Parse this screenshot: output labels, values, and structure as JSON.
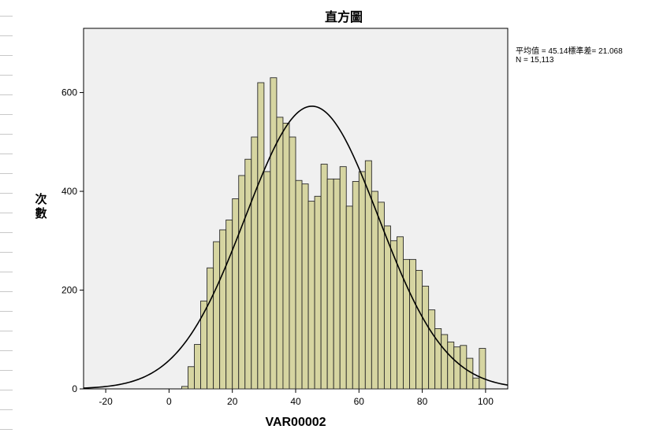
{
  "chart_data": {
    "type": "bar",
    "title": "直方圖",
    "xlabel": "VAR00002",
    "ylabel": "次數",
    "xlim": [
      -27,
      107
    ],
    "ylim": [
      0,
      730
    ],
    "x_ticks": [
      -20,
      0,
      20,
      40,
      60,
      80,
      100
    ],
    "y_ticks": [
      0,
      200,
      400,
      600
    ],
    "bin_width": 2,
    "bins": [
      {
        "x": 4,
        "value": 5
      },
      {
        "x": 6,
        "value": 45
      },
      {
        "x": 8,
        "value": 90
      },
      {
        "x": 10,
        "value": 178
      },
      {
        "x": 12,
        "value": 245
      },
      {
        "x": 14,
        "value": 298
      },
      {
        "x": 16,
        "value": 322
      },
      {
        "x": 18,
        "value": 342
      },
      {
        "x": 20,
        "value": 385
      },
      {
        "x": 22,
        "value": 432
      },
      {
        "x": 24,
        "value": 465
      },
      {
        "x": 26,
        "value": 510
      },
      {
        "x": 28,
        "value": 620
      },
      {
        "x": 30,
        "value": 440
      },
      {
        "x": 32,
        "value": 630
      },
      {
        "x": 34,
        "value": 550
      },
      {
        "x": 36,
        "value": 538
      },
      {
        "x": 38,
        "value": 510
      },
      {
        "x": 40,
        "value": 422
      },
      {
        "x": 42,
        "value": 415
      },
      {
        "x": 44,
        "value": 380
      },
      {
        "x": 46,
        "value": 390
      },
      {
        "x": 48,
        "value": 455
      },
      {
        "x": 50,
        "value": 425
      },
      {
        "x": 52,
        "value": 425
      },
      {
        "x": 54,
        "value": 450
      },
      {
        "x": 56,
        "value": 370
      },
      {
        "x": 58,
        "value": 420
      },
      {
        "x": 60,
        "value": 440
      },
      {
        "x": 62,
        "value": 462
      },
      {
        "x": 64,
        "value": 400
      },
      {
        "x": 66,
        "value": 378
      },
      {
        "x": 68,
        "value": 330
      },
      {
        "x": 70,
        "value": 300
      },
      {
        "x": 72,
        "value": 308
      },
      {
        "x": 74,
        "value": 262
      },
      {
        "x": 76,
        "value": 262
      },
      {
        "x": 78,
        "value": 240
      },
      {
        "x": 80,
        "value": 208
      },
      {
        "x": 82,
        "value": 160
      },
      {
        "x": 84,
        "value": 122
      },
      {
        "x": 86,
        "value": 110
      },
      {
        "x": 88,
        "value": 95
      },
      {
        "x": 90,
        "value": 85
      },
      {
        "x": 92,
        "value": 88
      },
      {
        "x": 94,
        "value": 62
      },
      {
        "x": 96,
        "value": 22
      },
      {
        "x": 98,
        "value": 82
      }
    ],
    "normal_curve": {
      "mean": 45.14,
      "sd": 21.068,
      "n": 15113
    },
    "annotation": [
      "平均值 = 45.14標準差= 21.068",
      "N = 15,113"
    ],
    "colors": {
      "plot_bg": "#f0f0f0",
      "bar_fill": "#d6d5a1",
      "bar_stroke": "#2a2a2a",
      "curve": "#000000"
    },
    "grid": false
  }
}
